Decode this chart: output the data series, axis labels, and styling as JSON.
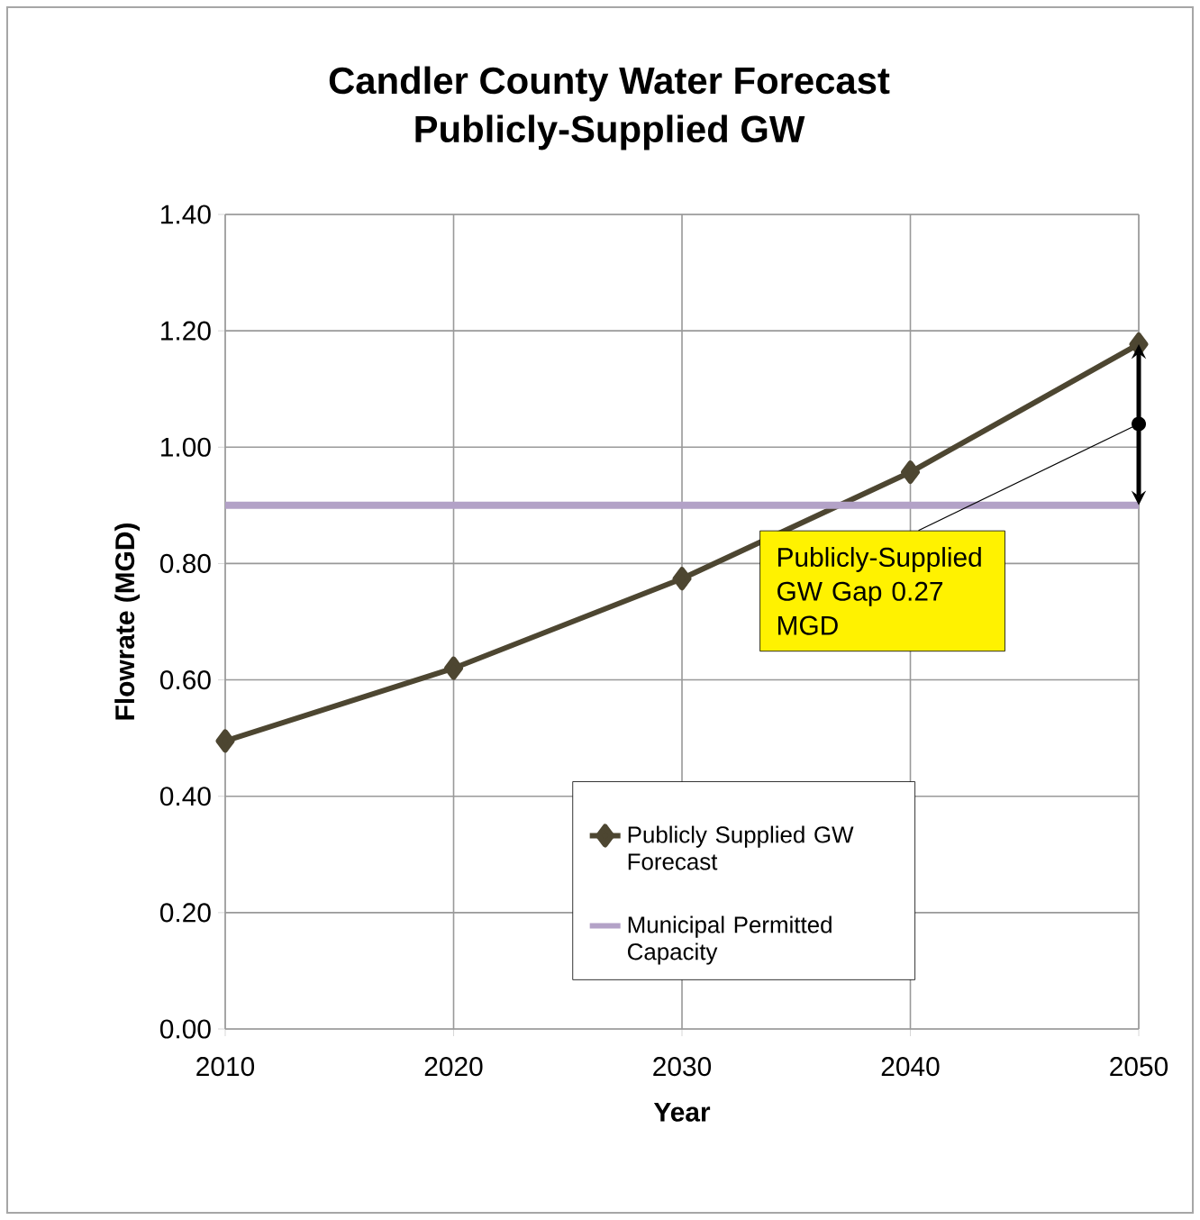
{
  "chart_data": {
    "type": "line",
    "title": "Candler County Water Forecast",
    "subtitle": "Publicly-Supplied GW",
    "xlabel": "Year",
    "ylabel": "Flowrate (MGD)",
    "x": [
      2010,
      2020,
      2030,
      2040,
      2050
    ],
    "series": [
      {
        "name": "Publicly Supplied GW Forecast",
        "color": "#4d4631",
        "marker": "diamond",
        "values": [
          0.495,
          0.62,
          0.774,
          0.957,
          1.177
        ]
      },
      {
        "name": "Municipal Permitted Capacity",
        "color": "#b3a2c7",
        "marker": "none",
        "values": [
          0.9,
          0.9,
          0.9,
          0.9,
          0.9
        ]
      }
    ],
    "xlim": [
      2010,
      2050
    ],
    "xticks": [
      2010,
      2020,
      2030,
      2040,
      2050
    ],
    "ylim": [
      0,
      1.4
    ],
    "yticks": [
      {
        "value": 0,
        "label": "0.00"
      },
      {
        "value": 0.2,
        "label": "0.20"
      },
      {
        "value": 0.4,
        "label": "0.40"
      },
      {
        "value": 0.6,
        "label": "0.60"
      },
      {
        "value": 0.8,
        "label": "0.80"
      },
      {
        "value": 1.0,
        "label": "1.00"
      },
      {
        "value": 1.2,
        "label": "1.20"
      },
      {
        "value": 1.4,
        "label": "1.40"
      }
    ],
    "grid": true,
    "legend": "bottom right",
    "annotations": [
      {
        "text": "Publicly-Supplied GW Gap 0.27 MGD",
        "x": 2050,
        "y": 1.04
      }
    ]
  }
}
